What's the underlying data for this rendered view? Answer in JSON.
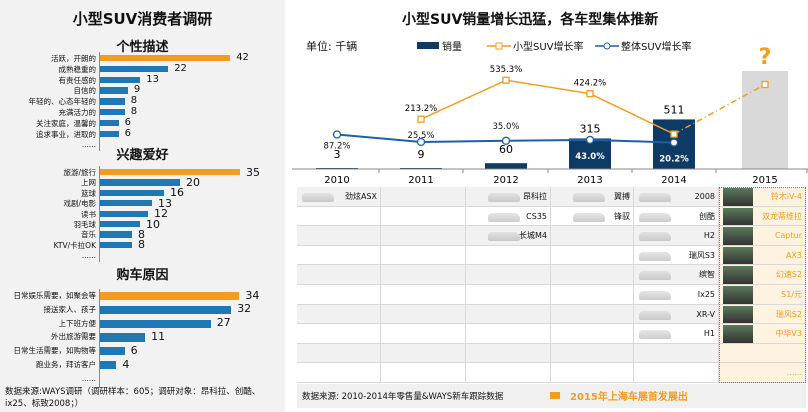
{
  "left": {
    "title": "小型SUV消费者调研",
    "sections": [
      {
        "title": "个性描述",
        "labels": [
          "活跃，开朗的",
          "成熟稳重的",
          "有责任感的",
          "自信的",
          "年轻的、心态年轻的",
          "充满活力的",
          "关注家庭，温馨的",
          "追求事业，进取的"
        ],
        "values": [
          42,
          22,
          13,
          9,
          8,
          8,
          6,
          6
        ],
        "more": "......"
      },
      {
        "title": "兴趣爱好",
        "labels": [
          "旅游/旅行",
          "上网",
          "篮球",
          "戏剧/电影",
          "读书",
          "羽毛球",
          "音乐",
          "KTV/卡拉OK"
        ],
        "values": [
          35,
          20,
          16,
          13,
          12,
          10,
          8,
          8
        ],
        "more": "......"
      },
      {
        "title": "购车原因",
        "labels": [
          "日常娱乐需要，如聚会等",
          "接送家人、孩子",
          "上下班方便",
          "外出旅游需要",
          "日常生活需要，如购物等",
          "跑业务，拜访客户"
        ],
        "values": [
          34,
          32,
          27,
          11,
          6,
          4
        ],
        "more": "......"
      }
    ],
    "source": "数据来源:WAYS调研（调研样本：605；调研对象：昂科拉、创酷、ix25、标致2008；）"
  },
  "colors": {
    "orange": "#f39c1f",
    "blue": "#1f77b4",
    "navy": "#0e3a66",
    "line_blue": "#1f5fa8"
  },
  "chart_data": {
    "type": "bar+line",
    "title": "小型SUV销量增长迅猛，各车型集体推新",
    "unit": "单位: 千辆",
    "legend": [
      "销量",
      "小型SUV增长率",
      "整体SUV增长率"
    ],
    "categories": [
      "2010",
      "2011",
      "2012",
      "2013",
      "2014",
      "2015"
    ],
    "sales": [
      3,
      9,
      60,
      315,
      511,
      null
    ],
    "sales_labels": [
      "3",
      "9",
      "60",
      "315",
      "511",
      "?"
    ],
    "small_suv_growth": [
      null,
      213.2,
      535.3,
      424.2,
      90,
      500
    ],
    "small_suv_growth_labels": [
      "",
      "213.2%",
      "535.3%",
      "424.2%",
      "",
      ""
    ],
    "overall_suv_growth": [
      87.2,
      25.5,
      35.0,
      43.0,
      20.2,
      null
    ],
    "overall_suv_growth_labels": [
      "87.2%",
      "25.5%",
      "35.0%",
      "43.0%",
      "20.2%",
      ""
    ]
  },
  "models": [
    [
      "劲炫ASX",
      "",
      "",
      "",
      "",
      ""
    ],
    [],
    [
      "昂科拉",
      "CS35",
      "长城M4"
    ],
    [
      "翼搏",
      "锋驭"
    ],
    [
      "2008",
      "创酷",
      "H2",
      "瑞风S3",
      "缤智",
      "Ix25",
      "XR-V",
      "H1"
    ],
    [
      "铃木iV-4",
      "双龙蒂维拉",
      "Captur",
      "AX3",
      "幻速S2",
      "S1/元",
      "瑞风S2",
      "中华V3",
      "",
      "......"
    ]
  ],
  "footer": {
    "source": "数据来源: 2010-2014年零售量&WAYS新车跟踪数据",
    "legend": "2015年上海车展首发展出"
  }
}
